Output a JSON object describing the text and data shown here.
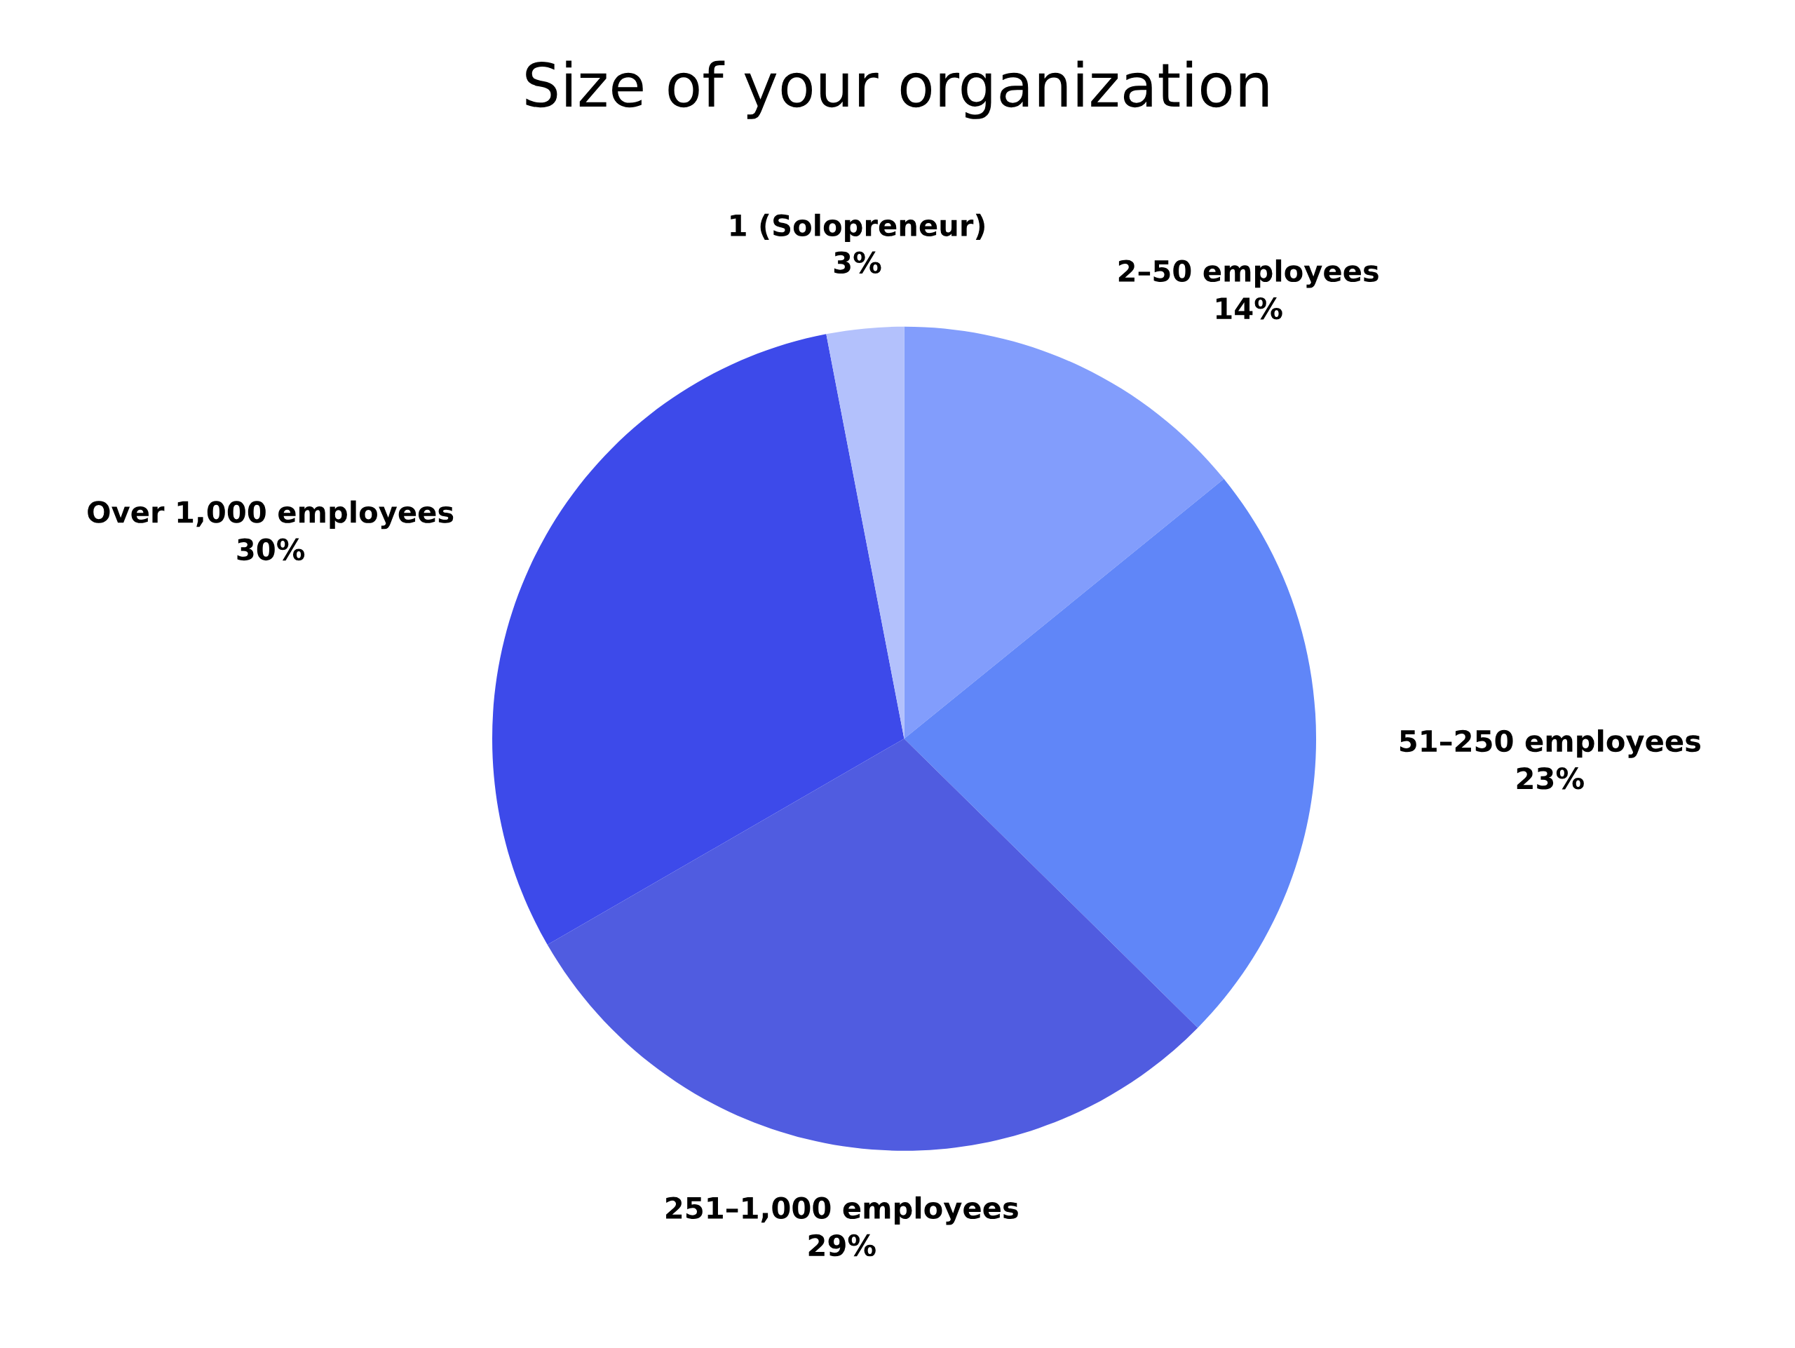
{
  "chart_data": {
    "type": "pie",
    "title": "Size of your organization",
    "categories": [
      "2–50 employees",
      "51–250 employees",
      "251–1,000 employees",
      "Over 1,000 employees",
      "1 (Solopreneur)"
    ],
    "values": [
      14,
      23,
      29,
      30,
      3
    ],
    "value_labels": [
      "14%",
      "23%",
      "29%",
      "30%",
      "3%"
    ],
    "colors": [
      "#829dfc",
      "#6086f8",
      "#505ce0",
      "#3d4aea",
      "#b3c1fc"
    ],
    "legend": false
  }
}
